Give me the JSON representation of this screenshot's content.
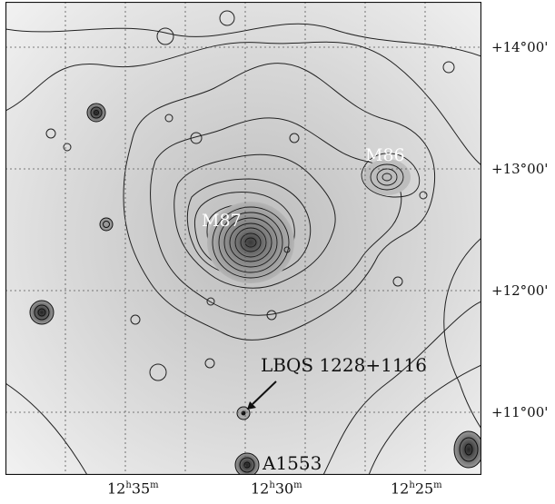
{
  "figure": {
    "dec_labels": [
      "+14°00'",
      "+13°00'",
      "+12°00'",
      "+11°00'"
    ],
    "ra_labels": [
      {
        "h": "12",
        "hunit": "h",
        "m": "35",
        "munit": "m"
      },
      {
        "h": "12",
        "hunit": "h",
        "m": "30",
        "munit": "m"
      },
      {
        "h": "12",
        "hunit": "h",
        "m": "25",
        "munit": "m"
      }
    ],
    "sources": {
      "m87": "M87",
      "m86": "M86",
      "lbqs": "LBQS 1228+1116",
      "a1553": "A1553"
    },
    "colors": {
      "background_fill": "#e9e9e9",
      "contour_line": "#222222",
      "grid_line": "#555555"
    }
  }
}
